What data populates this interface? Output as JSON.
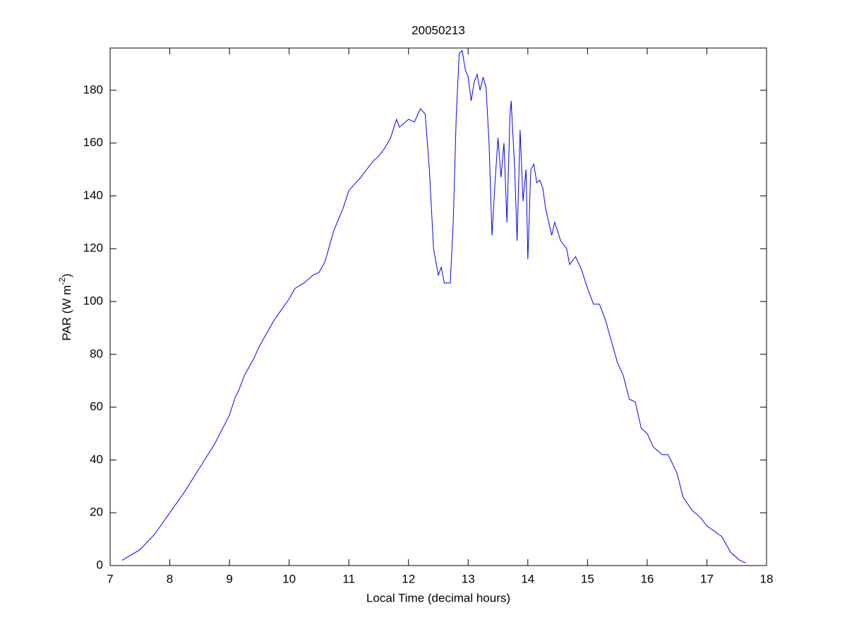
{
  "chart_data": {
    "type": "line",
    "title": "20050213",
    "xlabel": "Local Time (decimal hours)",
    "ylabel": [
      "PAR (W m",
      "-2",
      ")"
    ],
    "xlim": [
      7,
      18
    ],
    "xticks": [
      7,
      8,
      9,
      10,
      11,
      12,
      13,
      14,
      15,
      16,
      17,
      18
    ],
    "ylim": [
      0,
      196
    ],
    "yticks": [
      0,
      20,
      40,
      60,
      80,
      100,
      120,
      140,
      160,
      180
    ],
    "grid": false,
    "series": [
      {
        "color": "#0000ff",
        "x": [
          7.2,
          7.5,
          7.75,
          8.0,
          8.25,
          8.5,
          8.75,
          9.0,
          9.1,
          9.15,
          9.25,
          9.4,
          9.5,
          9.75,
          10.0,
          10.1,
          10.25,
          10.4,
          10.5,
          10.6,
          10.75,
          10.9,
          11.0,
          11.2,
          11.4,
          11.5,
          11.6,
          11.7,
          11.8,
          11.85,
          12.0,
          12.1,
          12.2,
          12.28,
          12.35,
          12.42,
          12.5,
          12.55,
          12.6,
          12.7,
          12.75,
          12.8,
          12.85,
          12.9,
          12.95,
          13.0,
          13.05,
          13.1,
          13.15,
          13.2,
          13.25,
          13.3,
          13.35,
          13.4,
          13.45,
          13.5,
          13.55,
          13.6,
          13.65,
          13.7,
          13.72,
          13.78,
          13.82,
          13.87,
          13.92,
          13.97,
          14.0,
          14.05,
          14.1,
          14.15,
          14.2,
          14.25,
          14.3,
          14.4,
          14.45,
          14.55,
          14.65,
          14.7,
          14.8,
          14.9,
          15.0,
          15.1,
          15.2,
          15.3,
          15.4,
          15.5,
          15.6,
          15.7,
          15.8,
          15.9,
          16.0,
          16.1,
          16.25,
          16.35,
          16.5,
          16.6,
          16.75,
          16.9,
          17.0,
          17.25,
          17.4,
          17.55,
          17.65
        ],
        "values": [
          2,
          6,
          12,
          20,
          28,
          37,
          46,
          57,
          64,
          66,
          72,
          78,
          83,
          93,
          101,
          105,
          107,
          110,
          111,
          115,
          127,
          135,
          142,
          147,
          153,
          155,
          158,
          162,
          169,
          166,
          169,
          168,
          173,
          171,
          150,
          120,
          110,
          113,
          107,
          107,
          130,
          170,
          194,
          195,
          188,
          185,
          176,
          183,
          186,
          180,
          185,
          181,
          160,
          125,
          145,
          162,
          147,
          160,
          130,
          170,
          176,
          150,
          123,
          165,
          138,
          150,
          116,
          150,
          152,
          145,
          146,
          143,
          135,
          125,
          130,
          123,
          120,
          114,
          117,
          112,
          105,
          99,
          99,
          93,
          85,
          77,
          72,
          63,
          62,
          52,
          50,
          45,
          42,
          42,
          35,
          26,
          21,
          18,
          15,
          11,
          5,
          2,
          1
        ]
      }
    ]
  }
}
